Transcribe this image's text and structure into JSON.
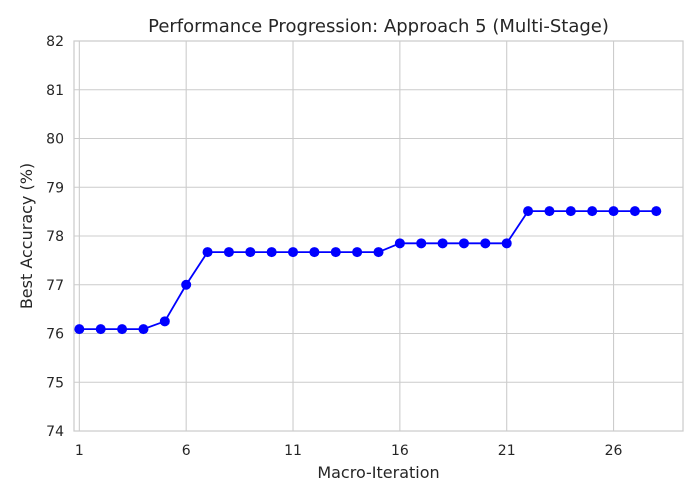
{
  "chart_data": {
    "type": "line",
    "title": "Performance Progression: Approach 5 (Multi-Stage)",
    "xlabel": "Macro-Iteration",
    "ylabel": "Best Accuracy (%)",
    "xlim": [
      0.75,
      29.25
    ],
    "ylim": [
      74,
      82
    ],
    "xticks": [
      1,
      6,
      11,
      16,
      21,
      26
    ],
    "yticks": [
      74,
      75,
      76,
      77,
      78,
      79,
      80,
      81,
      82
    ],
    "grid": true,
    "line_color": "#0000ff",
    "x": [
      1,
      2,
      3,
      4,
      5,
      6,
      7,
      8,
      9,
      10,
      11,
      12,
      13,
      14,
      15,
      16,
      17,
      18,
      19,
      20,
      21,
      22,
      23,
      24,
      25,
      26,
      27,
      28
    ],
    "y": [
      76.09,
      76.09,
      76.09,
      76.09,
      76.25,
      77.0,
      77.67,
      77.67,
      77.67,
      77.67,
      77.67,
      77.67,
      77.67,
      77.67,
      77.67,
      77.85,
      77.85,
      77.85,
      77.85,
      77.85,
      77.85,
      78.51,
      78.51,
      78.51,
      78.51,
      78.51,
      78.51,
      78.51
    ]
  }
}
